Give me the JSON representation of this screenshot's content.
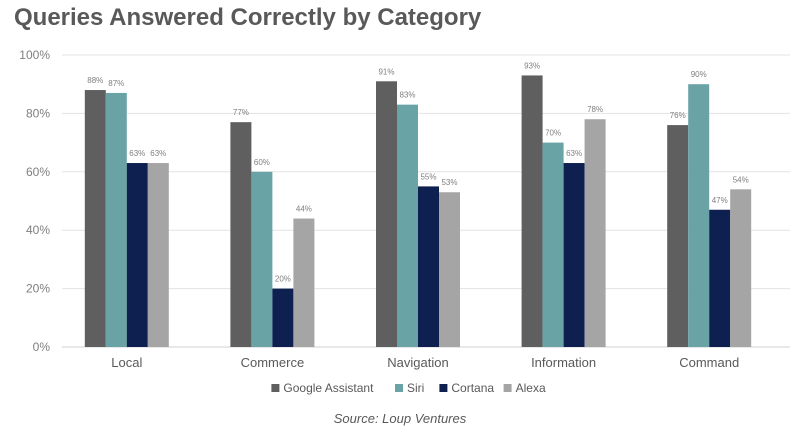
{
  "chart_data": {
    "type": "bar",
    "title": "Queries Answered Correctly by Category",
    "xlabel": "",
    "ylabel": "",
    "categories": [
      "Local",
      "Commerce",
      "Navigation",
      "Information",
      "Command"
    ],
    "yticks": [
      "0%",
      "20%",
      "40%",
      "60%",
      "80%",
      "100%"
    ],
    "ylim": [
      0,
      100
    ],
    "grid": true,
    "legend_position": "bottom",
    "series": [
      {
        "name": "Google Assistant",
        "color": "#5f5f5f",
        "values": [
          88,
          77,
          91,
          93,
          76
        ],
        "labels": [
          "88%",
          "77%",
          "91%",
          "93%",
          "76%"
        ]
      },
      {
        "name": "Siri",
        "color": "#6aa3a6",
        "values": [
          87,
          60,
          83,
          70,
          90
        ],
        "labels": [
          "87%",
          "60%",
          "83%",
          "70%",
          "90%"
        ]
      },
      {
        "name": "Cortana",
        "color": "#0d2050",
        "values": [
          63,
          20,
          55,
          63,
          47
        ],
        "labels": [
          "63%",
          "20%",
          "55%",
          "63%",
          "47%"
        ]
      },
      {
        "name": "Alexa",
        "color": "#a5a5a5",
        "values": [
          63,
          44,
          53,
          78,
          54
        ],
        "labels": [
          "63%",
          "44%",
          "53%",
          "78%",
          "54%"
        ]
      }
    ],
    "source": "Source: Loup Ventures"
  }
}
